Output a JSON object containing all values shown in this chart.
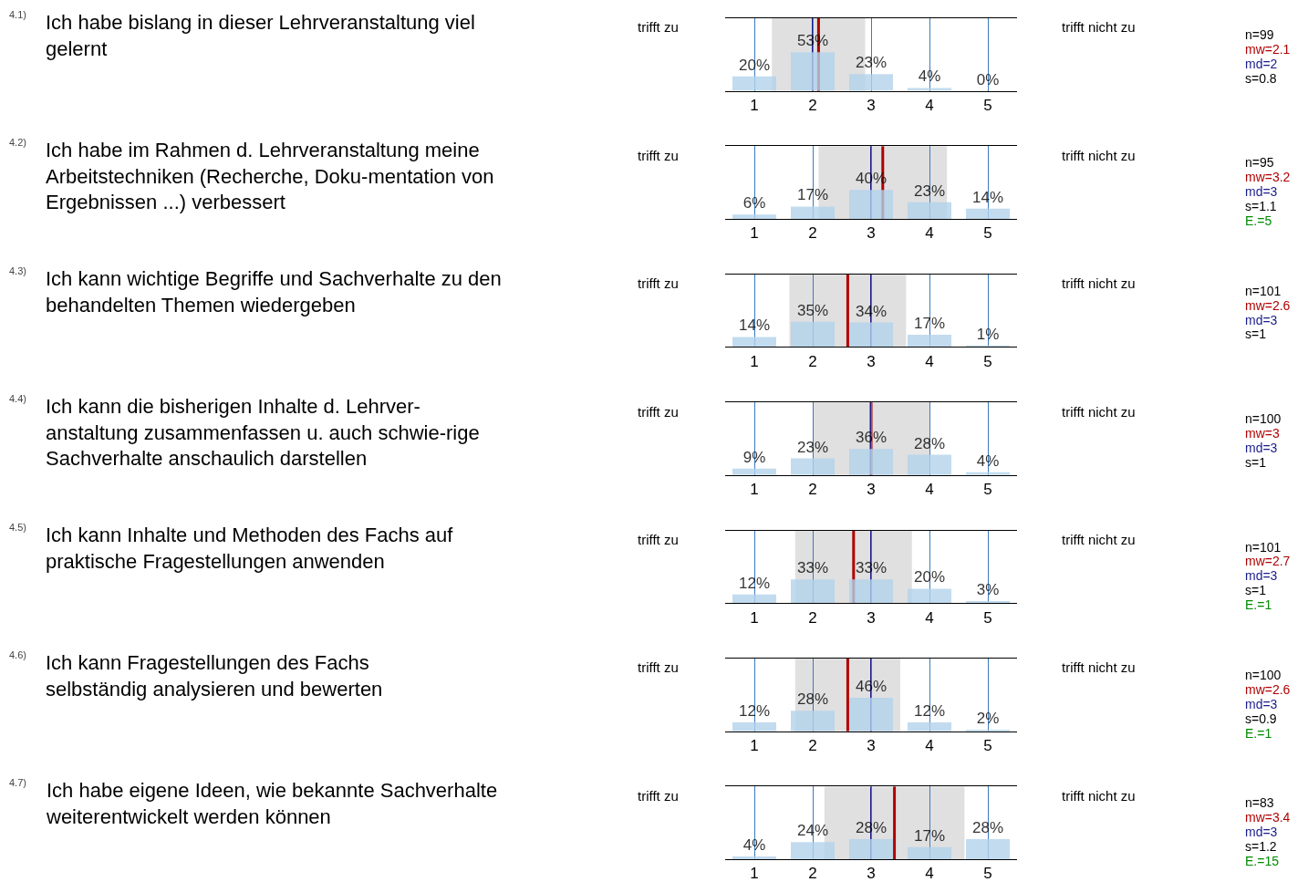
{
  "chart_data": [
    {
      "type": "bar",
      "ylabel": "Ich habe bislang in dieser Lehrveranstaltung viel\ngelernt",
      "x": [
        1,
        2,
        3,
        4,
        5
      ],
      "xlim": [
        0.5,
        5.5
      ],
      "xticks": [
        1,
        2,
        3,
        4,
        5
      ],
      "tick_labels": "x",
      "grid": "x",
      "annotations": [
        "4.1)",
        "trifft zu",
        "trifft nicht zu",
        "n=99"
      ],
      "series": [
        {
          "color": "#b3d3ec",
          "values": [
            20,
            53,
            23,
            4,
            0
          ],
          "value_labels": [
            "20%",
            "53%",
            "23%",
            "4%",
            "0%"
          ]
        }
      ],
      "ref_lines": [
        {
          "axis": "x",
          "value": 2.1,
          "label": "mw=2.1",
          "color": "#b00000"
        },
        {
          "axis": "x",
          "value": 2,
          "label": "md=2",
          "color": "#1a1a8c"
        }
      ],
      "bands": [
        {
          "axis": "x",
          "from": 1.3,
          "to": 2.9,
          "label": "s=0.8"
        }
      ]
    },
    {
      "type": "bar",
      "ylabel": "Ich habe im Rahmen d. Lehrveranstaltung meine\nArbeitstechniken (Recherche, Doku-mentation von\nErgebnissen ...) verbessert",
      "x": [
        1,
        2,
        3,
        4,
        5
      ],
      "xlim": [
        0.5,
        5.5
      ],
      "xticks": [
        1,
        2,
        3,
        4,
        5
      ],
      "tick_labels": "x",
      "grid": "x",
      "annotations": [
        "4.2)",
        "trifft zu",
        "trifft nicht zu",
        "n=95",
        "E.=5"
      ],
      "series": [
        {
          "color": "#b3d3ec",
          "values": [
            6,
            17,
            40,
            23,
            14
          ],
          "value_labels": [
            "6%",
            "17%",
            "40%",
            "23%",
            "14%"
          ]
        }
      ],
      "ref_lines": [
        {
          "axis": "x",
          "value": 3.2,
          "label": "mw=3.2",
          "color": "#b00000"
        },
        {
          "axis": "x",
          "value": 3,
          "label": "md=3",
          "color": "#1a1a8c"
        }
      ],
      "bands": [
        {
          "axis": "x",
          "from": 2.1,
          "to": 4.3,
          "label": "s=1.1"
        }
      ]
    },
    {
      "type": "bar",
      "ylabel": "Ich kann wichtige Begriffe und Sachverhalte zu den\nbehandelten Themen wiedergeben",
      "x": [
        1,
        2,
        3,
        4,
        5
      ],
      "xlim": [
        0.5,
        5.5
      ],
      "xticks": [
        1,
        2,
        3,
        4,
        5
      ],
      "tick_labels": "x",
      "grid": "x",
      "annotations": [
        "4.3)",
        "trifft zu",
        "trifft nicht zu",
        "n=101"
      ],
      "series": [
        {
          "color": "#b3d3ec",
          "values": [
            14,
            35,
            34,
            17,
            1
          ],
          "value_labels": [
            "14%",
            "35%",
            "34%",
            "17%",
            "1%"
          ]
        }
      ],
      "ref_lines": [
        {
          "axis": "x",
          "value": 2.6,
          "label": "mw=2.6",
          "color": "#b00000"
        },
        {
          "axis": "x",
          "value": 3,
          "label": "md=3",
          "color": "#1a1a8c"
        }
      ],
      "bands": [
        {
          "axis": "x",
          "from": 1.6,
          "to": 3.6,
          "label": "s=1"
        }
      ]
    },
    {
      "type": "bar",
      "ylabel": "Ich kann die bisherigen Inhalte d. Lehrver-\nanstaltung zusammenfassen u. auch schwie-rige\nSachverhalte anschaulich darstellen",
      "x": [
        1,
        2,
        3,
        4,
        5
      ],
      "xlim": [
        0.5,
        5.5
      ],
      "xticks": [
        1,
        2,
        3,
        4,
        5
      ],
      "tick_labels": "x",
      "grid": "x",
      "annotations": [
        "4.4)",
        "trifft zu",
        "trifft nicht zu",
        "n=100"
      ],
      "series": [
        {
          "color": "#b3d3ec",
          "values": [
            9,
            23,
            36,
            28,
            4
          ],
          "value_labels": [
            "9%",
            "23%",
            "36%",
            "28%",
            "4%"
          ]
        }
      ],
      "ref_lines": [
        {
          "axis": "x",
          "value": 3,
          "label": "mw=3",
          "color": "#b00000"
        },
        {
          "axis": "x",
          "value": 3,
          "label": "md=3",
          "color": "#1a1a8c"
        }
      ],
      "bands": [
        {
          "axis": "x",
          "from": 2,
          "to": 4,
          "label": "s=1"
        }
      ]
    },
    {
      "type": "bar",
      "ylabel": "Ich kann Inhalte und Methoden des Fachs auf\npraktische Fragestellungen anwenden",
      "x": [
        1,
        2,
        3,
        4,
        5
      ],
      "xlim": [
        0.5,
        5.5
      ],
      "xticks": [
        1,
        2,
        3,
        4,
        5
      ],
      "tick_labels": "x",
      "grid": "x",
      "annotations": [
        "4.5)",
        "trifft zu",
        "trifft nicht zu",
        "n=101",
        "E.=1"
      ],
      "series": [
        {
          "color": "#b3d3ec",
          "values": [
            12,
            33,
            33,
            20,
            3
          ],
          "value_labels": [
            "12%",
            "33%",
            "33%",
            "20%",
            "3%"
          ]
        }
      ],
      "ref_lines": [
        {
          "axis": "x",
          "value": 2.7,
          "label": "mw=2.7",
          "color": "#b00000"
        },
        {
          "axis": "x",
          "value": 3,
          "label": "md=3",
          "color": "#1a1a8c"
        }
      ],
      "bands": [
        {
          "axis": "x",
          "from": 1.7,
          "to": 3.7,
          "label": "s=1"
        }
      ]
    },
    {
      "type": "bar",
      "ylabel": "Ich kann Fragestellungen des Fachs\nselbständig analysieren und bewerten",
      "x": [
        1,
        2,
        3,
        4,
        5
      ],
      "xlim": [
        0.5,
        5.5
      ],
      "xticks": [
        1,
        2,
        3,
        4,
        5
      ],
      "tick_labels": "x",
      "grid": "x",
      "annotations": [
        "4.6)",
        "trifft zu",
        "trifft nicht zu",
        "n=100",
        "E.=1"
      ],
      "series": [
        {
          "color": "#b3d3ec",
          "values": [
            12,
            28,
            46,
            12,
            2
          ],
          "value_labels": [
            "12%",
            "28%",
            "46%",
            "12%",
            "2%"
          ]
        }
      ],
      "ref_lines": [
        {
          "axis": "x",
          "value": 2.6,
          "label": "mw=2.6",
          "color": "#b00000"
        },
        {
          "axis": "x",
          "value": 3,
          "label": "md=3",
          "color": "#1a1a8c"
        }
      ],
      "bands": [
        {
          "axis": "x",
          "from": 1.7,
          "to": 3.5,
          "label": "s=0.9"
        }
      ]
    },
    {
      "type": "bar",
      "ylabel": "Ich habe eigene Ideen, wie bekannte Sachverhalte\nweiterentwickelt werden können",
      "x": [
        1,
        2,
        3,
        4,
        5
      ],
      "xlim": [
        0.5,
        5.5
      ],
      "xticks": [
        1,
        2,
        3,
        4,
        5
      ],
      "tick_labels": "x",
      "grid": "x",
      "annotations": [
        "4.7)",
        "trifft zu",
        "trifft nicht zu",
        "n=83",
        "E.=15"
      ],
      "series": [
        {
          "color": "#b3d3ec",
          "values": [
            4,
            24,
            28,
            17,
            28
          ],
          "value_labels": [
            "4%",
            "24%",
            "28%",
            "17%",
            "28%"
          ]
        }
      ],
      "ref_lines": [
        {
          "axis": "x",
          "value": 3.4,
          "label": "mw=3.4",
          "color": "#b00000"
        },
        {
          "axis": "x",
          "value": 3,
          "label": "md=3",
          "color": "#1a1a8c"
        }
      ],
      "bands": [
        {
          "axis": "x",
          "from": 2.2,
          "to": 4.6,
          "label": "s=1.2"
        }
      ]
    }
  ]
}
